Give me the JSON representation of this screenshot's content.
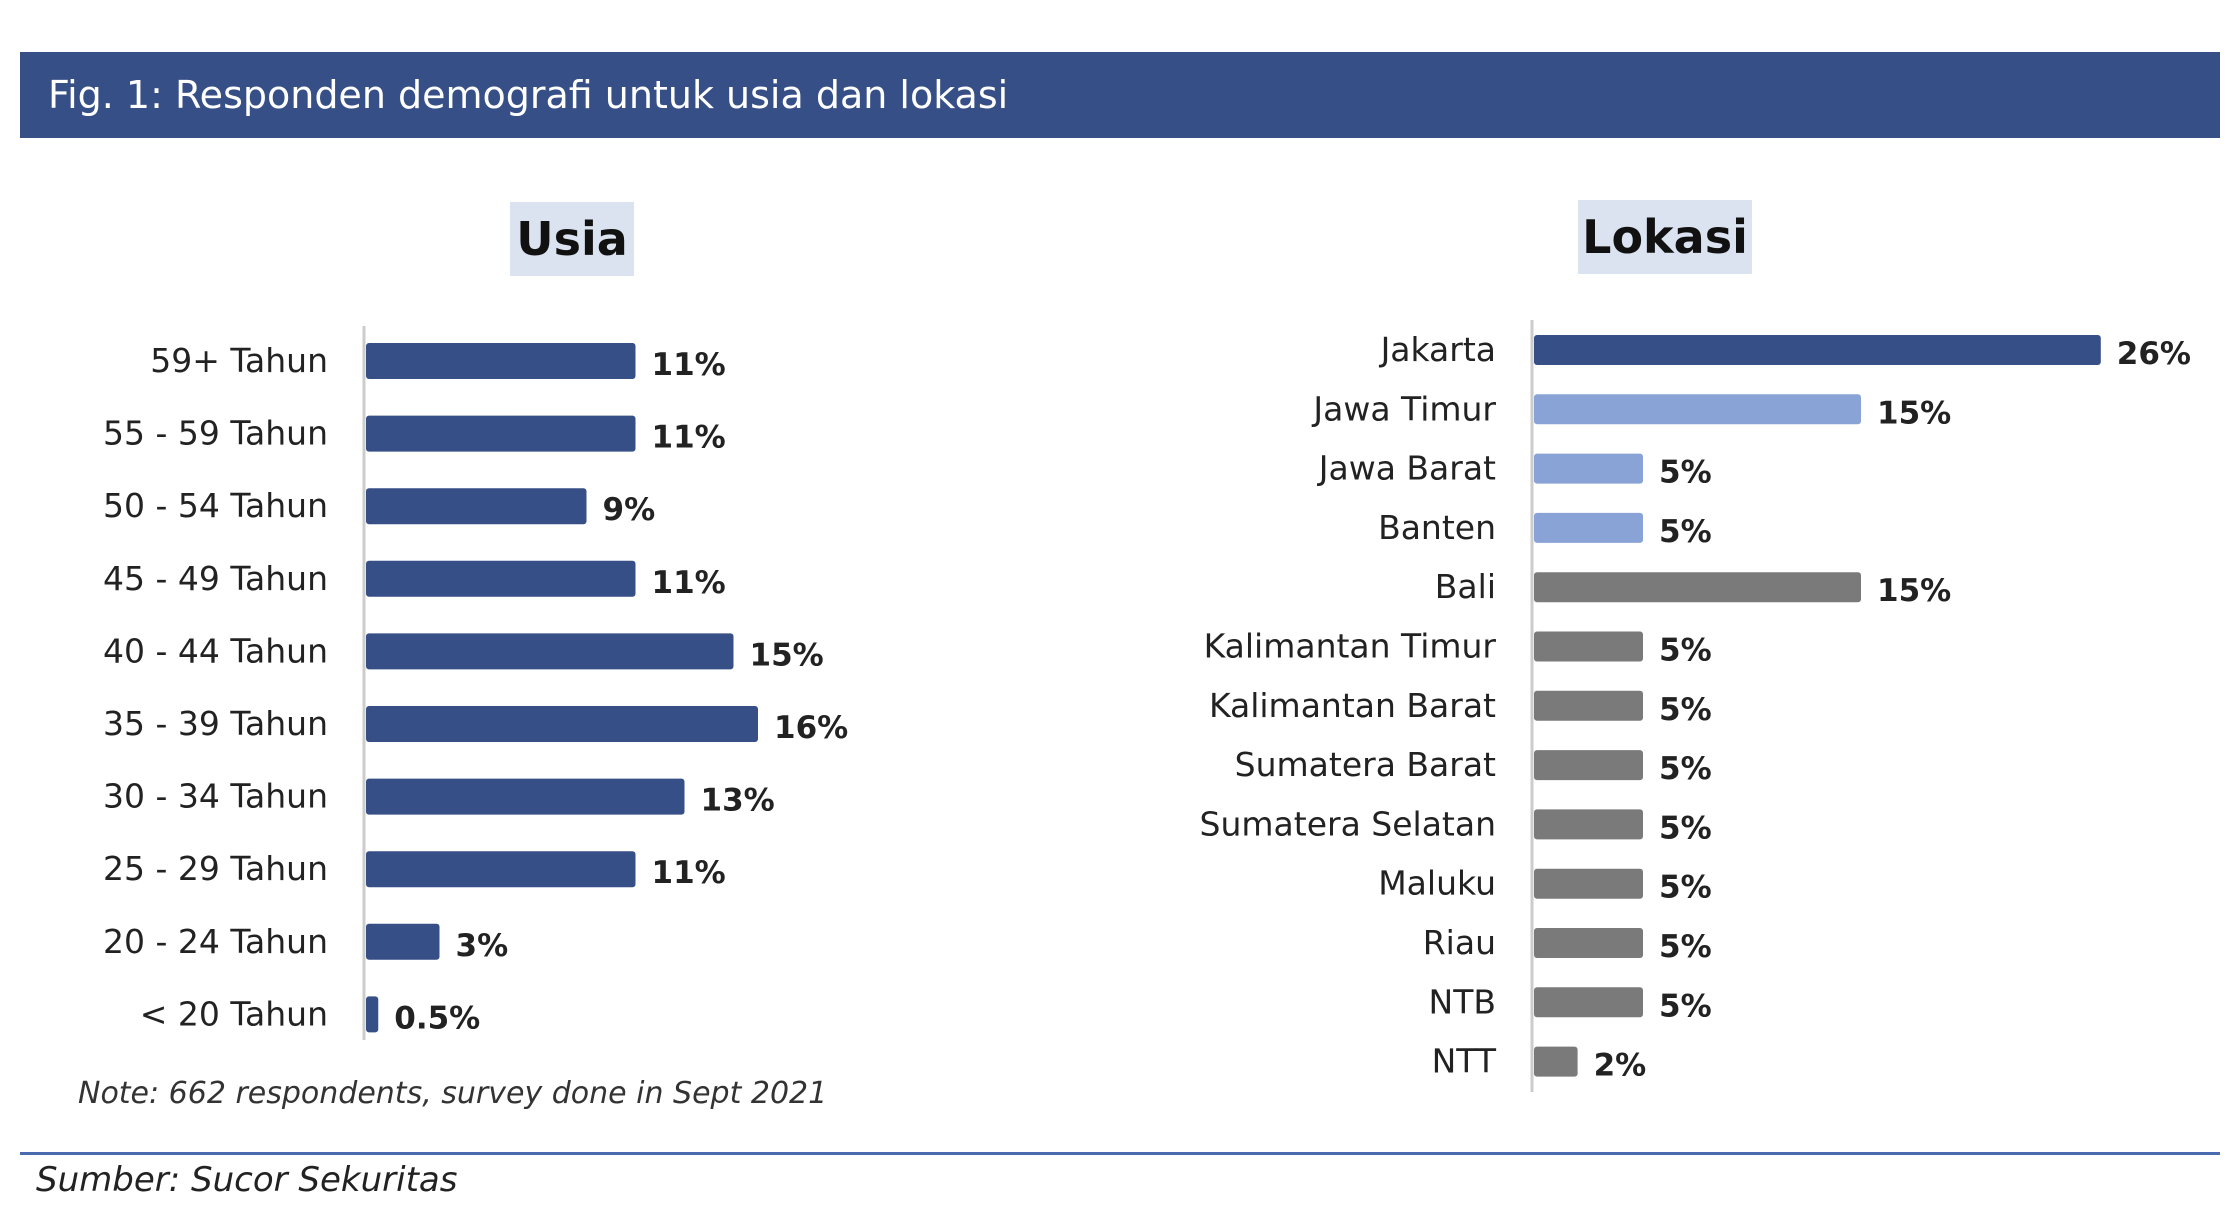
{
  "header": {
    "title": "Fig. 1: Responden demografi untuk usia dan lokasi"
  },
  "note": "Note: 662 respondents, survey done in Sept 2021",
  "source": "Sumber: Sucor Sekuritas",
  "colors": {
    "header_bg": "#374f87",
    "title_bg": "#dbe3f0",
    "dark_blue": "#374f87",
    "light_blue": "#8aa3d6",
    "gray": "#7a7a7a"
  },
  "chart_data": [
    {
      "type": "bar",
      "orientation": "horizontal",
      "title": "Usia",
      "categories": [
        "59+ Tahun",
        "55 - 59 Tahun",
        "50 - 54 Tahun",
        "45 - 49 Tahun",
        "40 - 44 Tahun",
        "35 - 39 Tahun",
        "30 - 34 Tahun",
        "25 - 29 Tahun",
        "20 - 24 Tahun",
        "< 20 Tahun"
      ],
      "values": [
        11,
        11,
        9,
        11,
        15,
        16,
        13,
        11,
        3,
        0.5
      ],
      "value_labels": [
        "11%",
        "11%",
        "9%",
        "11%",
        "15%",
        "16%",
        "13%",
        "11%",
        "3%",
        "0.5%"
      ],
      "colors": [
        "#374f87",
        "#374f87",
        "#374f87",
        "#374f87",
        "#374f87",
        "#374f87",
        "#374f87",
        "#374f87",
        "#374f87",
        "#374f87"
      ],
      "xlabel": "",
      "ylabel": "",
      "grid": false
    },
    {
      "type": "bar",
      "orientation": "horizontal",
      "title": "Lokasi",
      "categories": [
        "Jakarta",
        "Jawa Timur",
        "Jawa Barat",
        "Banten",
        "Bali",
        "Kalimantan Timur",
        "Kalimantan Barat",
        "Sumatera Barat",
        "Sumatera Selatan",
        "Maluku",
        "Riau",
        "NTB",
        "NTT"
      ],
      "values": [
        26,
        15,
        5,
        5,
        15,
        5,
        5,
        5,
        5,
        5,
        5,
        5,
        2
      ],
      "value_labels": [
        "26%",
        "15%",
        "5%",
        "5%",
        "15%",
        "5%",
        "5%",
        "5%",
        "5%",
        "5%",
        "5%",
        "5%",
        "2%"
      ],
      "colors": [
        "#374f87",
        "#8aa3d6",
        "#8aa3d6",
        "#8aa3d6",
        "#7a7a7a",
        "#7a7a7a",
        "#7a7a7a",
        "#7a7a7a",
        "#7a7a7a",
        "#7a7a7a",
        "#7a7a7a",
        "#7a7a7a",
        "#7a7a7a"
      ],
      "xlabel": "",
      "ylabel": "",
      "grid": false
    }
  ]
}
